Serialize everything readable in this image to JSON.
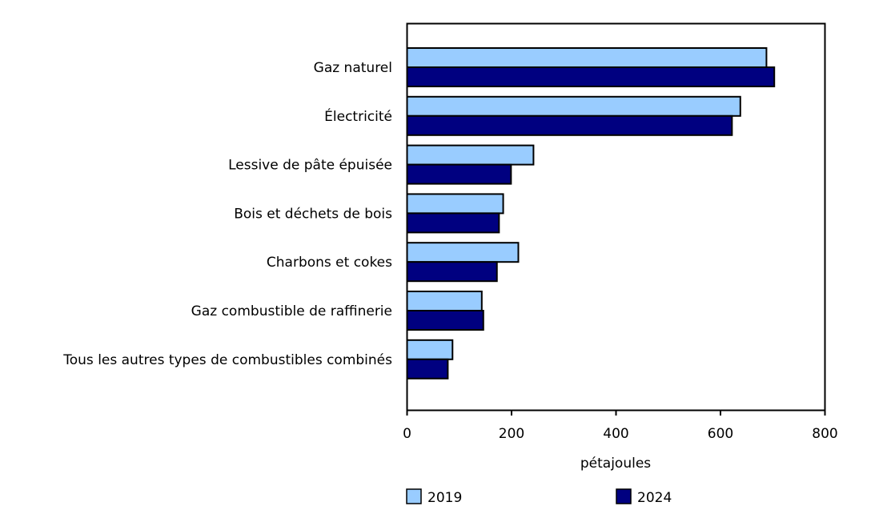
{
  "chart_data": {
    "type": "bar",
    "orientation": "horizontal",
    "categories": [
      "Gaz naturel",
      "Électricité",
      "Lessive de pâte épuisée",
      "Bois et déchets de bois",
      "Charbons et cokes",
      "Gaz combustible de raffinerie",
      "Tous les autres types de combustibles combinés"
    ],
    "series": [
      {
        "name": "2019",
        "color": "#99CCFF",
        "values": [
          688,
          638,
          242,
          184,
          213,
          143,
          87
        ]
      },
      {
        "name": "2024",
        "color": "#000080",
        "values": [
          703,
          622,
          199,
          176,
          172,
          146,
          78
        ]
      }
    ],
    "xlabel": "pétajoules",
    "xlim": [
      0,
      800
    ],
    "xticks": [
      "0",
      "200",
      "400",
      "600",
      "800"
    ],
    "grid": false,
    "legend_placement": "bottom"
  }
}
